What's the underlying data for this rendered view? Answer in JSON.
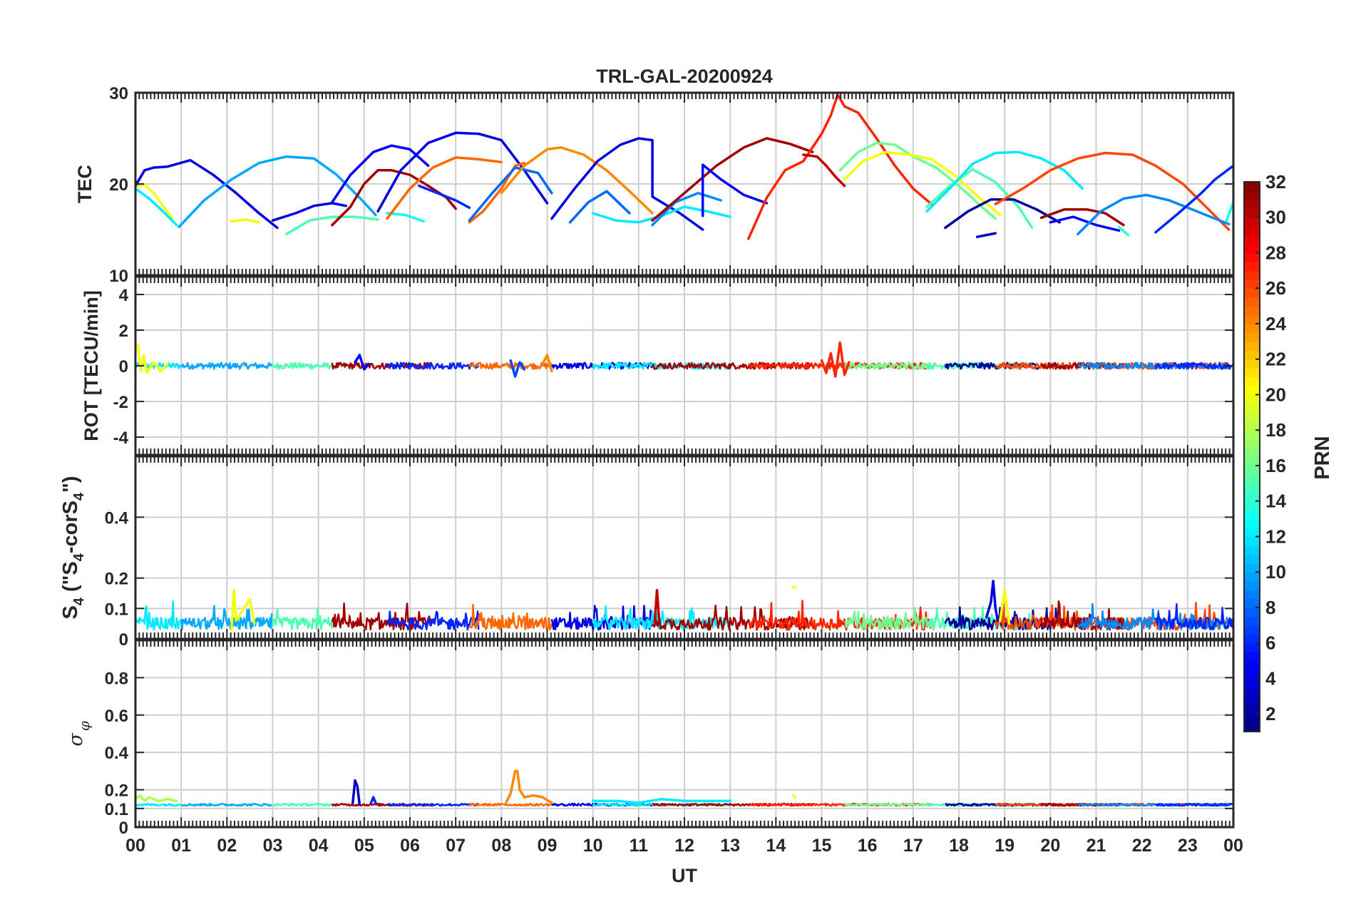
{
  "chart_data": {
    "type": "line",
    "title": "TRL-GAL-20200924",
    "xlabel": "UT",
    "x_ticks": [
      "00",
      "01",
      "02",
      "03",
      "04",
      "05",
      "06",
      "07",
      "08",
      "09",
      "10",
      "11",
      "12",
      "13",
      "14",
      "15",
      "16",
      "17",
      "18",
      "19",
      "20",
      "21",
      "22",
      "23",
      "00"
    ],
    "xlim": [
      0,
      24
    ],
    "colorbar": {
      "label": "PRN",
      "range": [
        1,
        32
      ],
      "ticks": [
        "2",
        "4",
        "6",
        "8",
        "10",
        "12",
        "14",
        "16",
        "18",
        "20",
        "22",
        "24",
        "26",
        "28",
        "30",
        "32"
      ]
    },
    "panels": [
      {
        "id": "tec",
        "ylabel": "TEC",
        "ylim": [
          10,
          30
        ],
        "yticks": [
          "10",
          "20",
          "30"
        ],
        "series": [
          {
            "prn": 20,
            "x": [
              0.0,
              0.2,
              0.4,
              0.6,
              0.8
            ],
            "y": [
              19.8,
              19.9,
              19.0,
              17.6,
              16.3
            ]
          },
          {
            "prn": 12,
            "x": [
              0.0,
              0.3,
              0.6,
              0.9
            ],
            "y": [
              19.5,
              18.4,
              17.0,
              15.5
            ]
          },
          {
            "prn": 4,
            "x": [
              0.0,
              0.2,
              0.4,
              0.7,
              1.2,
              1.7,
              2.2,
              2.7,
              3.1
            ],
            "y": [
              19.8,
              21.5,
              21.8,
              21.9,
              22.6,
              21.0,
              19.0,
              16.8,
              15.2
            ]
          },
          {
            "prn": 10,
            "x": [
              0.95,
              1.5,
              2.1,
              2.7,
              3.3,
              3.9,
              4.4,
              4.9,
              5.25
            ],
            "y": [
              15.3,
              18.2,
              20.5,
              22.3,
              23.0,
              22.8,
              21.0,
              18.5,
              16.6
            ]
          },
          {
            "prn": 20,
            "x": [
              2.1,
              2.4,
              2.7
            ],
            "y": [
              15.9,
              16.1,
              15.8
            ]
          },
          {
            "prn": 4,
            "x": [
              3.0,
              3.5,
              3.9,
              4.3,
              4.6
            ],
            "y": [
              16.0,
              16.8,
              17.6,
              17.9,
              17.6
            ]
          },
          {
            "prn": 15,
            "x": [
              3.3,
              3.8,
              4.3,
              4.8,
              5.3
            ],
            "y": [
              14.5,
              16.0,
              16.4,
              16.4,
              16.1
            ]
          },
          {
            "prn": 5,
            "x": [
              4.3,
              4.7,
              5.2,
              5.6,
              6.0,
              6.4
            ],
            "y": [
              18.0,
              21.0,
              23.5,
              24.2,
              23.8,
              22.0
            ]
          },
          {
            "prn": 31,
            "x": [
              4.3,
              4.7,
              5.0,
              5.3,
              5.6,
              6.0,
              6.4,
              6.8,
              7.0
            ],
            "y": [
              15.5,
              17.5,
              20.0,
              21.5,
              21.5,
              21.0,
              19.8,
              18.5,
              17.3
            ]
          },
          {
            "prn": 13,
            "x": [
              5.5,
              5.9,
              6.3
            ],
            "y": [
              16.8,
              16.6,
              15.9
            ]
          },
          {
            "prn": 4,
            "x": [
              5.3,
              5.8,
              6.4,
              7.0,
              7.5,
              8.0,
              8.5,
              9.0
            ],
            "y": [
              17.0,
              21.5,
              24.5,
              25.6,
              25.5,
              24.8,
              21.5,
              17.9
            ]
          },
          {
            "prn": 25,
            "x": [
              5.5,
              6.0,
              6.5,
              7.0,
              7.5,
              8.0
            ],
            "y": [
              16.2,
              19.5,
              21.8,
              22.9,
              22.7,
              22.4
            ]
          },
          {
            "prn": 6,
            "x": [
              6.2,
              6.6,
              7.0,
              7.3
            ],
            "y": [
              19.8,
              19.0,
              18.2,
              17.4
            ]
          },
          {
            "prn": 25,
            "x": [
              7.3,
              7.6,
              8.0,
              8.3,
              8.5
            ],
            "y": [
              15.8,
              17.0,
              19.5,
              22.0,
              22.3
            ]
          },
          {
            "prn": 8,
            "x": [
              7.3,
              7.8,
              8.3,
              8.8,
              9.1
            ],
            "y": [
              16.0,
              19.0,
              21.8,
              21.2,
              19.0
            ]
          },
          {
            "prn": 24,
            "x": [
              8.0,
              8.5,
              9.0,
              9.3,
              9.8,
              10.3,
              10.8,
              11.3
            ],
            "y": [
              19.0,
              22.0,
              23.8,
              24.0,
              23.2,
              21.5,
              19.2,
              16.8
            ]
          },
          {
            "prn": 4,
            "x": [
              9.1,
              9.6,
              10.1,
              10.6,
              11.0,
              11.3,
              11.3,
              11.9,
              12.4
            ],
            "y": [
              16.2,
              19.5,
              22.5,
              24.3,
              25.0,
              24.8,
              18.6,
              16.8,
              15.0
            ]
          },
          {
            "prn": 8,
            "x": [
              9.5,
              9.9,
              10.3,
              10.8
            ],
            "y": [
              15.8,
              18.0,
              19.2,
              16.8
            ]
          },
          {
            "prn": 12,
            "x": [
              10.0,
              10.5,
              11.0,
              11.5,
              12.0,
              12.5,
              13.0
            ],
            "y": [
              16.8,
              16.0,
              15.8,
              16.5,
              17.5,
              17.0,
              16.4
            ]
          },
          {
            "prn": 9,
            "x": [
              11.3,
              11.8,
              12.3,
              12.8
            ],
            "y": [
              15.5,
              18.0,
              19.0,
              18.2
            ]
          },
          {
            "prn": 31,
            "x": [
              11.3,
              12.0,
              12.7,
              13.3,
              13.8,
              14.3,
              14.8
            ],
            "y": [
              16.0,
              19.0,
              22.0,
              24.0,
              25.0,
              24.4,
              23.5
            ]
          },
          {
            "prn": 5,
            "x": [
              12.4,
              12.4,
              12.8,
              13.3,
              13.8
            ],
            "y": [
              16.5,
              22.1,
              20.5,
              18.8,
              17.9
            ]
          },
          {
            "prn": 27,
            "x": [
              13.4,
              13.8,
              14.2,
              14.6,
              15.0,
              15.2,
              15.35,
              15.5,
              15.8,
              16.2,
              16.6,
              17.0,
              17.4
            ],
            "y": [
              14.0,
              18.5,
              21.5,
              22.5,
              25.5,
              27.5,
              29.8,
              28.5,
              27.8,
              25.0,
              22.0,
              19.5,
              17.8
            ]
          },
          {
            "prn": 30,
            "x": [
              14.6,
              14.9,
              15.1,
              15.3,
              15.5
            ],
            "y": [
              23.2,
              23.0,
              22.0,
              20.8,
              19.8
            ]
          },
          {
            "prn": 16,
            "x": [
              15.4,
              15.8,
              16.2,
              16.6,
              17.0,
              17.5,
              18.0,
              18.5,
              18.8
            ],
            "y": [
              21.5,
              23.5,
              24.5,
              24.3,
              23.0,
              21.8,
              19.8,
              17.5,
              16.2
            ]
          },
          {
            "prn": 20,
            "x": [
              15.5,
              15.9,
              16.4,
              16.9,
              17.4,
              17.9,
              18.4,
              18.9
            ],
            "y": [
              20.5,
              22.5,
              23.5,
              23.2,
              22.7,
              21.0,
              18.7,
              16.6
            ]
          },
          {
            "prn": 15,
            "x": [
              17.3,
              17.8,
              18.3,
              18.8,
              19.3,
              19.6
            ],
            "y": [
              17.5,
              19.8,
              21.6,
              20.2,
              17.5,
              15.2
            ]
          },
          {
            "prn": 12,
            "x": [
              17.3,
              17.8,
              18.3,
              18.8,
              19.3,
              19.8,
              20.3,
              20.7
            ],
            "y": [
              17.0,
              19.5,
              22.2,
              23.4,
              23.5,
              22.8,
              21.5,
              19.5
            ]
          },
          {
            "prn": 2,
            "x": [
              17.7,
              18.2,
              18.7,
              19.2,
              19.7,
              20.2
            ],
            "y": [
              15.2,
              17.0,
              18.3,
              18.3,
              17.2,
              15.8
            ]
          },
          {
            "prn": 3,
            "x": [
              18.4,
              18.8
            ],
            "y": [
              14.2,
              14.6
            ]
          },
          {
            "prn": 26,
            "x": [
              18.8,
              19.4,
              20.0,
              20.6,
              21.2,
              21.8,
              22.3,
              22.9,
              23.4,
              23.9
            ],
            "y": [
              17.8,
              19.5,
              21.5,
              22.8,
              23.4,
              23.2,
              22.0,
              20.0,
              17.5,
              15.0
            ]
          },
          {
            "prn": 31,
            "x": [
              19.8,
              20.3,
              20.8,
              21.2,
              21.6
            ],
            "y": [
              16.3,
              17.2,
              17.2,
              16.8,
              15.5
            ]
          },
          {
            "prn": 5,
            "x": [
              20.0,
              20.5,
              21.0,
              21.5
            ],
            "y": [
              15.8,
              16.4,
              15.5,
              14.9
            ]
          },
          {
            "prn": 9,
            "x": [
              20.6,
              21.1,
              21.6,
              22.1,
              22.6,
              23.1,
              23.6,
              23.9
            ],
            "y": [
              14.5,
              17.0,
              18.4,
              18.8,
              18.2,
              17.2,
              16.2,
              15.6
            ]
          },
          {
            "prn": 14,
            "x": [
              21.5,
              21.7
            ],
            "y": [
              15.3,
              14.4
            ]
          },
          {
            "prn": 6,
            "x": [
              22.3,
              22.8,
              23.3,
              23.6,
              24.0
            ],
            "y": [
              14.7,
              16.8,
              19.0,
              20.5,
              22.0
            ]
          },
          {
            "prn": 13,
            "x": [
              23.85,
              24.0
            ],
            "y": [
              16.0,
              18.0
            ]
          }
        ]
      },
      {
        "id": "rot",
        "ylabel": "ROT [TECU/min]",
        "ylim": [
          -5,
          5
        ],
        "yticks": [
          "-4",
          "-2",
          "0",
          "2",
          "4"
        ],
        "series": [
          {
            "prn": 20,
            "x": [
              0.05,
              0.12,
              0.18,
              0.25,
              0.4,
              0.55,
              0.7
            ],
            "y": [
              1.2,
              -0.3,
              0.6,
              -0.4,
              0.2,
              -0.3,
              0.1
            ]
          },
          {
            "prn": 5,
            "x": [
              4.8,
              4.9,
              5.0,
              5.1
            ],
            "y": [
              0.2,
              0.6,
              -0.2,
              0.1
            ]
          },
          {
            "prn": 7,
            "x": [
              8.2,
              8.3,
              8.4,
              8.5
            ],
            "y": [
              0.3,
              -0.6,
              0.2,
              -0.2
            ]
          },
          {
            "prn": 24,
            "x": [
              8.9,
              9.0,
              9.1
            ],
            "y": [
              0.1,
              0.6,
              -0.3
            ]
          },
          {
            "prn": 27,
            "x": [
              15.0,
              15.1,
              15.2,
              15.3,
              15.4,
              15.5,
              15.6
            ],
            "y": [
              0.3,
              -0.4,
              0.7,
              -0.6,
              1.3,
              -0.5,
              0.2
            ]
          }
        ]
      },
      {
        "id": "s4",
        "ylabel": "S4 (\"S4-corS4\")",
        "ylabel_parts": [
          "S",
          "4",
          " (\"S",
          "4",
          "-corS",
          "4",
          "\")"
        ],
        "ylim": [
          0,
          0.6
        ],
        "yticks": [
          "0",
          "0.1",
          "0.2",
          "0.4"
        ],
        "series": [
          {
            "prn": 20,
            "x": [
              2.1,
              2.15,
              2.2,
              2.5,
              2.6
            ],
            "y": [
              0.03,
              0.16,
              0.06,
              0.13,
              0.05
            ]
          },
          {
            "prn": 30,
            "x": [
              11.35,
              11.4,
              11.45
            ],
            "y": [
              0.05,
              0.16,
              0.06
            ]
          },
          {
            "prn": 4,
            "x": [
              18.6,
              18.7,
              18.75,
              18.8,
              18.85
            ],
            "y": [
              0.07,
              0.12,
              0.19,
              0.1,
              0.06
            ]
          },
          {
            "prn": 20,
            "x": [
              18.9,
              19.0,
              19.1
            ],
            "y": [
              0.06,
              0.16,
              0.05
            ]
          },
          {
            "prn": 20,
            "x": [
              14.38,
              14.42
            ],
            "y": [
              0.17,
              0.17
            ]
          }
        ]
      },
      {
        "id": "sigma",
        "ylabel": "σφ",
        "ylabel_parts": [
          "σ",
          "φ"
        ],
        "ylim": [
          0,
          1
        ],
        "yticks": [
          "0",
          "0.1",
          "0.2",
          "0.4",
          "0.6",
          "0.8"
        ],
        "series": [
          {
            "prn": 18,
            "x": [
              0.0,
              0.1,
              0.2,
              0.3,
              0.5,
              0.7,
              0.9
            ],
            "y": [
              0.15,
              0.17,
              0.14,
              0.16,
              0.14,
              0.15,
              0.14
            ]
          },
          {
            "prn": 3,
            "x": [
              4.75,
              4.8,
              4.85,
              4.9
            ],
            "y": [
              0.13,
              0.25,
              0.22,
              0.12
            ]
          },
          {
            "prn": 6,
            "x": [
              5.15,
              5.2,
              5.25
            ],
            "y": [
              0.13,
              0.16,
              0.13
            ]
          },
          {
            "prn": 24,
            "x": [
              8.1,
              8.2,
              8.3,
              8.35,
              8.4,
              8.5,
              8.7,
              8.9,
              9.1
            ],
            "y": [
              0.13,
              0.18,
              0.3,
              0.3,
              0.2,
              0.16,
              0.17,
              0.16,
              0.13
            ]
          },
          {
            "prn": 12,
            "x": [
              10.0,
              10.5,
              11.0,
              11.5,
              12.0,
              12.5,
              13.0
            ],
            "y": [
              0.14,
              0.14,
              0.13,
              0.15,
              0.14,
              0.14,
              0.14
            ]
          },
          {
            "prn": 20,
            "x": [
              14.38,
              14.42
            ],
            "y": [
              0.17,
              0.16
            ]
          }
        ]
      }
    ]
  }
}
